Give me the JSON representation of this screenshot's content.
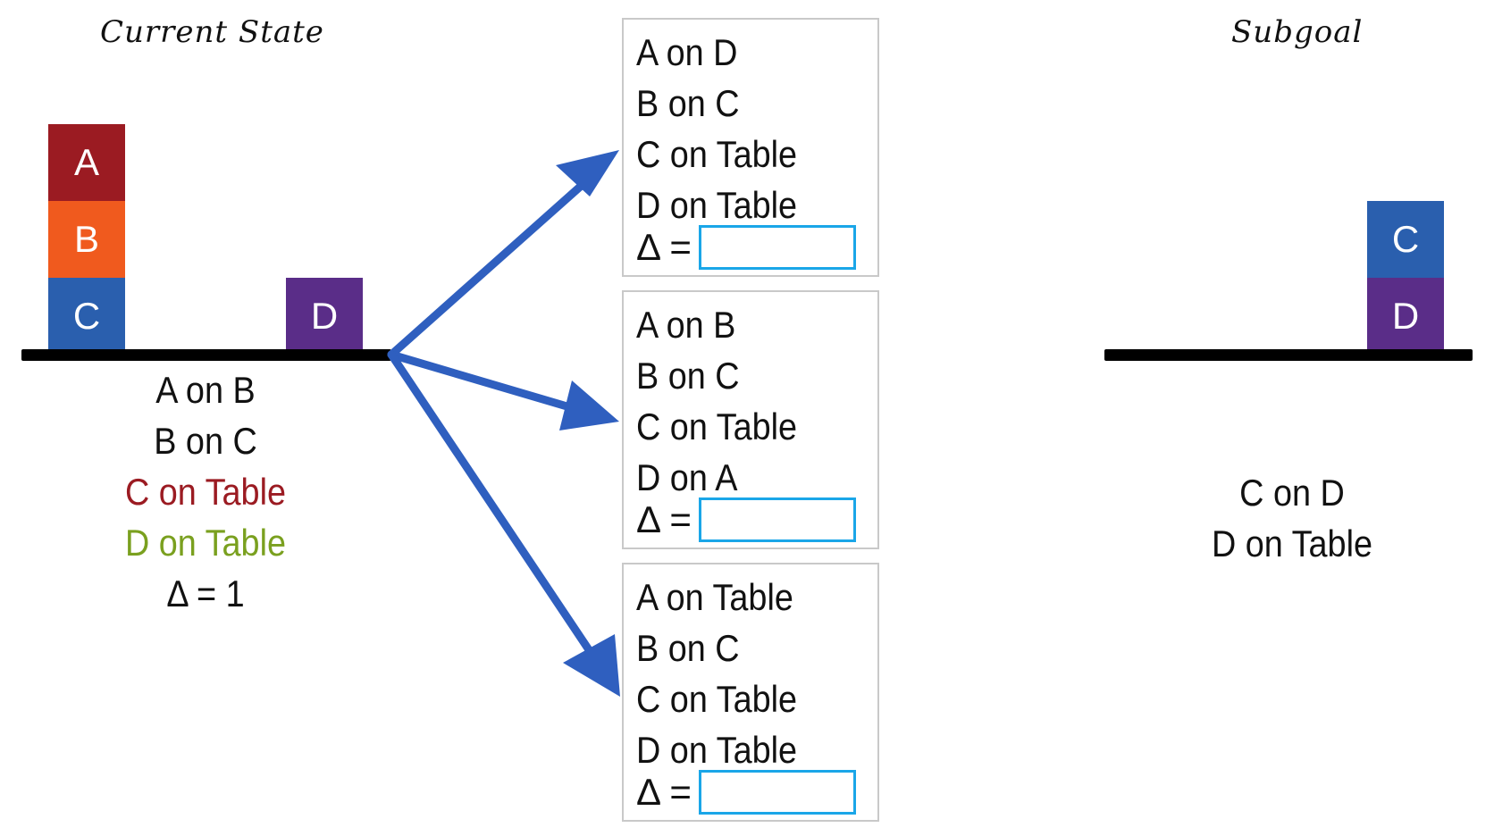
{
  "colors": {
    "block_a": "#9b1b22",
    "block_b": "#f05a1e",
    "block_c": "#2a5fae",
    "block_d": "#5a2d88",
    "arrow": "#2f5fbf",
    "highlight_red": "#9b1b22",
    "highlight_green": "#7aa01f",
    "input_border": "#1aa6e8"
  },
  "current_state": {
    "heading": "Current State",
    "blocks": {
      "a": "A",
      "b": "B",
      "c": "C",
      "d": "D"
    },
    "facts": [
      "A on B",
      "B on C",
      "C on Table",
      "D on Table",
      "Δ = 1"
    ]
  },
  "options": [
    {
      "facts": [
        "A on D",
        "B on C",
        "C on Table",
        "D on Table"
      ],
      "delta_label": "Δ ="
    },
    {
      "facts": [
        "A on B",
        "B on C",
        "C on Table",
        "D on A"
      ],
      "delta_label": "Δ ="
    },
    {
      "facts": [
        "A on Table",
        "B on C",
        "C on Table",
        "D on Table"
      ],
      "delta_label": "Δ ="
    }
  ],
  "subgoal": {
    "heading": "Subgoal",
    "blocks": {
      "c": "C",
      "d": "D"
    },
    "facts": [
      "C on D",
      "D on Table"
    ]
  }
}
